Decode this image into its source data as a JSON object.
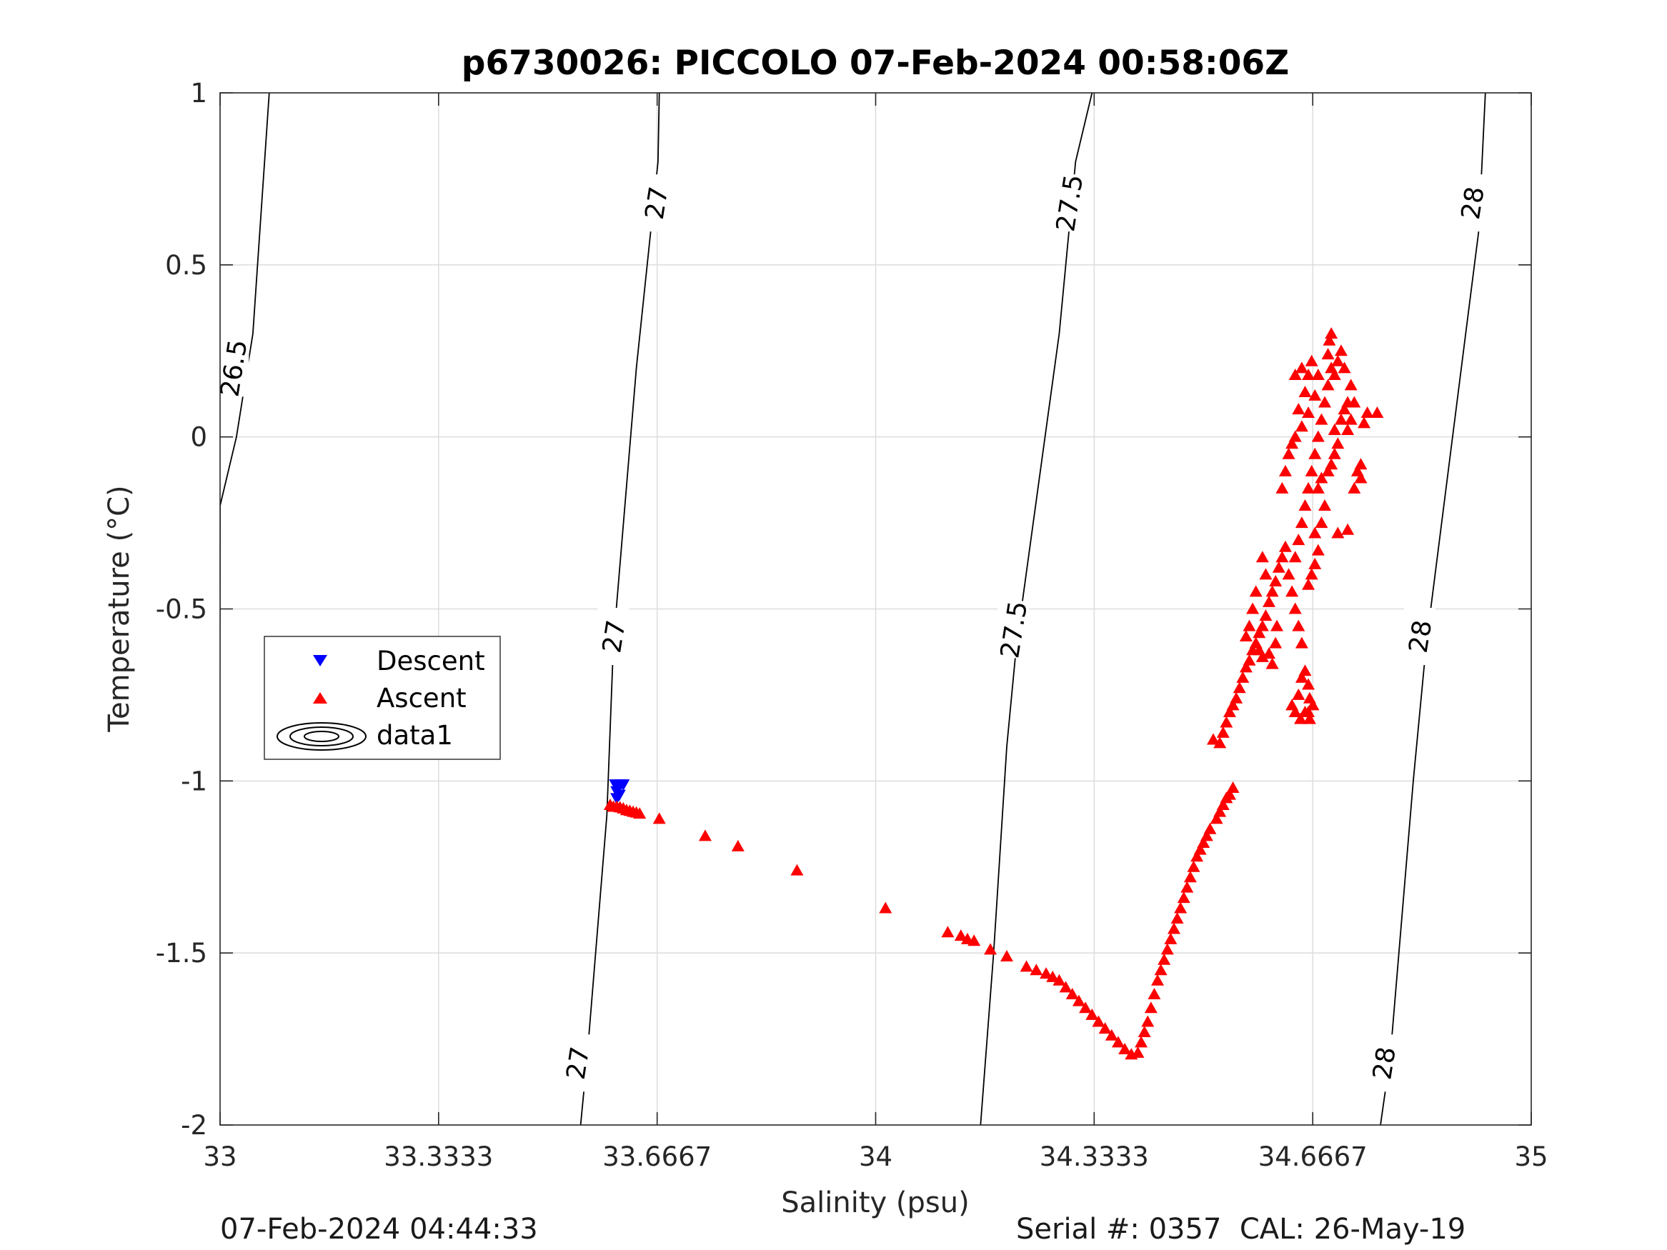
{
  "chart_data": {
    "type": "scatter",
    "title": "p6730026: PICCOLO 07-Feb-2024 00:58:06Z",
    "xlabel": "Salinity (psu)",
    "ylabel": "Temperature (°C)",
    "xlim": [
      33,
      35
    ],
    "ylim": [
      -2,
      1
    ],
    "xticks": [
      33,
      33.3333,
      33.6667,
      34,
      34.3333,
      34.6667,
      35
    ],
    "xtick_labels": [
      "33",
      "33.3333",
      "33.6667",
      "34",
      "34.3333",
      "34.6667",
      "35"
    ],
    "yticks": [
      -2,
      -1.5,
      -1,
      -0.5,
      0,
      0.5,
      1
    ],
    "ytick_labels": [
      "-2",
      "-1.5",
      "-1",
      "-0.5",
      "0",
      "0.5",
      "1"
    ],
    "grid": true,
    "legend_position": "middle-left",
    "legend": [
      "Descent",
      "Ascent",
      "data1"
    ],
    "series": [
      {
        "name": "Descent",
        "marker": "triangle-down",
        "color": "#0000ff",
        "points": [
          [
            33.603,
            -1.01
          ],
          [
            33.607,
            -1.02
          ],
          [
            33.611,
            -1.01
          ],
          [
            33.615,
            -1.01
          ],
          [
            33.605,
            -1.03
          ],
          [
            33.609,
            -1.04
          ],
          [
            33.605,
            -1.05
          ]
        ]
      },
      {
        "name": "Ascent",
        "marker": "triangle-up",
        "color": "#ff0000",
        "points": [
          [
            33.595,
            -1.07
          ],
          [
            33.6,
            -1.075
          ],
          [
            33.605,
            -1.075
          ],
          [
            33.61,
            -1.077
          ],
          [
            33.615,
            -1.08
          ],
          [
            33.62,
            -1.085
          ],
          [
            33.625,
            -1.087
          ],
          [
            33.63,
            -1.09
          ],
          [
            33.635,
            -1.092
          ],
          [
            33.64,
            -1.095
          ],
          [
            33.67,
            -1.11
          ],
          [
            33.74,
            -1.16
          ],
          [
            33.79,
            -1.19
          ],
          [
            33.88,
            -1.26
          ],
          [
            34.015,
            -1.37
          ],
          [
            34.11,
            -1.44
          ],
          [
            34.13,
            -1.45
          ],
          [
            34.14,
            -1.46
          ],
          [
            34.15,
            -1.465
          ],
          [
            34.175,
            -1.49
          ],
          [
            34.2,
            -1.51
          ],
          [
            34.23,
            -1.54
          ],
          [
            34.245,
            -1.55
          ],
          [
            34.26,
            -1.56
          ],
          [
            34.27,
            -1.57
          ],
          [
            34.28,
            -1.58
          ],
          [
            34.29,
            -1.6
          ],
          [
            34.3,
            -1.62
          ],
          [
            34.31,
            -1.64
          ],
          [
            34.32,
            -1.66
          ],
          [
            34.33,
            -1.68
          ],
          [
            34.34,
            -1.7
          ],
          [
            34.35,
            -1.72
          ],
          [
            34.36,
            -1.74
          ],
          [
            34.37,
            -1.76
          ],
          [
            34.38,
            -1.78
          ],
          [
            34.39,
            -1.795
          ],
          [
            34.4,
            -1.79
          ],
          [
            34.405,
            -1.76
          ],
          [
            34.41,
            -1.73
          ],
          [
            34.415,
            -1.7
          ],
          [
            34.42,
            -1.66
          ],
          [
            34.425,
            -1.62
          ],
          [
            34.43,
            -1.58
          ],
          [
            34.435,
            -1.55
          ],
          [
            34.44,
            -1.52
          ],
          [
            34.445,
            -1.49
          ],
          [
            34.45,
            -1.46
          ],
          [
            34.455,
            -1.43
          ],
          [
            34.46,
            -1.4
          ],
          [
            34.465,
            -1.37
          ],
          [
            34.47,
            -1.34
          ],
          [
            34.475,
            -1.31
          ],
          [
            34.48,
            -1.28
          ],
          [
            34.485,
            -1.25
          ],
          [
            34.49,
            -1.22
          ],
          [
            34.495,
            -1.2
          ],
          [
            34.5,
            -1.18
          ],
          [
            34.505,
            -1.16
          ],
          [
            34.51,
            -1.14
          ],
          [
            34.52,
            -1.11
          ],
          [
            34.525,
            -1.09
          ],
          [
            34.53,
            -1.07
          ],
          [
            34.535,
            -1.05
          ],
          [
            34.54,
            -1.04
          ],
          [
            34.545,
            -1.02
          ],
          [
            34.515,
            -0.88
          ],
          [
            34.525,
            -0.89
          ],
          [
            34.53,
            -0.86
          ],
          [
            34.535,
            -0.83
          ],
          [
            34.54,
            -0.8
          ],
          [
            34.545,
            -0.78
          ],
          [
            34.55,
            -0.76
          ],
          [
            34.555,
            -0.73
          ],
          [
            34.56,
            -0.7
          ],
          [
            34.565,
            -0.67
          ],
          [
            34.57,
            -0.65
          ],
          [
            34.575,
            -0.62
          ],
          [
            34.58,
            -0.6
          ],
          [
            34.585,
            -0.57
          ],
          [
            34.59,
            -0.55
          ],
          [
            34.595,
            -0.52
          ],
          [
            34.6,
            -0.48
          ],
          [
            34.605,
            -0.45
          ],
          [
            34.61,
            -0.42
          ],
          [
            34.615,
            -0.38
          ],
          [
            34.62,
            -0.35
          ],
          [
            34.625,
            -0.32
          ],
          [
            34.585,
            -0.62
          ],
          [
            34.59,
            -0.64
          ],
          [
            34.6,
            -0.63
          ],
          [
            34.605,
            -0.66
          ],
          [
            34.61,
            -0.6
          ],
          [
            34.612,
            -0.55
          ],
          [
            34.59,
            -0.35
          ],
          [
            34.595,
            -0.4
          ],
          [
            34.58,
            -0.45
          ],
          [
            34.575,
            -0.5
          ],
          [
            34.57,
            -0.55
          ],
          [
            34.565,
            -0.58
          ],
          [
            34.63,
            -0.4
          ],
          [
            34.635,
            -0.45
          ],
          [
            34.64,
            -0.5
          ],
          [
            34.645,
            -0.55
          ],
          [
            34.65,
            -0.6
          ],
          [
            34.655,
            -0.68
          ],
          [
            34.66,
            -0.72
          ],
          [
            34.662,
            -0.76
          ],
          [
            34.655,
            -0.8
          ],
          [
            34.648,
            -0.82
          ],
          [
            34.64,
            -0.8
          ],
          [
            34.635,
            -0.78
          ],
          [
            34.645,
            -0.75
          ],
          [
            34.65,
            -0.7
          ],
          [
            34.66,
            -0.8
          ],
          [
            34.662,
            -0.82
          ],
          [
            34.667,
            -0.78
          ],
          [
            34.64,
            -0.35
          ],
          [
            34.645,
            -0.3
          ],
          [
            34.65,
            -0.25
          ],
          [
            34.655,
            -0.2
          ],
          [
            34.66,
            -0.15
          ],
          [
            34.665,
            -0.1
          ],
          [
            34.67,
            -0.05
          ],
          [
            34.675,
            0.0
          ],
          [
            34.68,
            0.05
          ],
          [
            34.685,
            0.1
          ],
          [
            34.69,
            0.15
          ],
          [
            34.695,
            0.2
          ],
          [
            34.69,
            0.24
          ],
          [
            34.692,
            0.28
          ],
          [
            34.695,
            0.3
          ],
          [
            34.66,
            -0.43
          ],
          [
            34.665,
            -0.4
          ],
          [
            34.67,
            -0.37
          ],
          [
            34.675,
            -0.33
          ],
          [
            34.67,
            -0.28
          ],
          [
            34.68,
            -0.25
          ],
          [
            34.685,
            -0.2
          ],
          [
            34.675,
            -0.15
          ],
          [
            34.68,
            -0.12
          ],
          [
            34.69,
            -0.1
          ],
          [
            34.695,
            -0.08
          ],
          [
            34.7,
            -0.05
          ],
          [
            34.705,
            -0.02
          ],
          [
            34.7,
            0.02
          ],
          [
            34.71,
            0.05
          ],
          [
            34.715,
            0.08
          ],
          [
            34.72,
            0.1
          ],
          [
            34.725,
            0.15
          ],
          [
            34.7,
            0.18
          ],
          [
            34.705,
            0.22
          ],
          [
            34.71,
            0.25
          ],
          [
            34.715,
            0.2
          ],
          [
            34.62,
            -0.15
          ],
          [
            34.625,
            -0.1
          ],
          [
            34.63,
            -0.05
          ],
          [
            34.635,
            -0.02
          ],
          [
            34.64,
            0.0
          ],
          [
            34.65,
            0.03
          ],
          [
            34.66,
            0.07
          ],
          [
            34.67,
            0.12
          ],
          [
            34.675,
            0.18
          ],
          [
            34.665,
            0.22
          ],
          [
            34.66,
            0.18
          ],
          [
            34.655,
            0.13
          ],
          [
            34.645,
            0.08
          ],
          [
            34.64,
            0.18
          ],
          [
            34.65,
            0.2
          ],
          [
            34.735,
            -0.1
          ],
          [
            34.74,
            -0.08
          ],
          [
            34.745,
            0.04
          ],
          [
            34.75,
            0.07
          ],
          [
            34.73,
            0.1
          ],
          [
            34.725,
            0.05
          ],
          [
            34.72,
            0.02
          ],
          [
            34.705,
            -0.28
          ],
          [
            34.72,
            -0.27
          ],
          [
            34.73,
            -0.15
          ],
          [
            34.74,
            -0.12
          ],
          [
            34.765,
            0.07
          ]
        ]
      }
    ],
    "contours": [
      {
        "label": "26.5",
        "points": [
          [
            32.998,
            -2.5
          ],
          [
            33.0,
            -0.2
          ],
          [
            33.025,
            0.0
          ],
          [
            33.05,
            0.3
          ],
          [
            33.075,
            1.0
          ]
        ],
        "label_at": [
          33.02,
          0.2
        ]
      },
      {
        "label": "27",
        "points": [
          [
            33.55,
            -2.0
          ],
          [
            33.56,
            -1.8
          ],
          [
            33.59,
            -1.1
          ],
          [
            33.6,
            -0.6
          ],
          [
            33.635,
            0.2
          ],
          [
            33.668,
            0.8
          ],
          [
            33.67,
            1.0
          ]
        ],
        "label_at": [
          [
            33.545,
            -1.82
          ],
          [
            33.6,
            -0.58
          ],
          [
            33.665,
            0.68
          ]
        ]
      },
      {
        "label": "27.5",
        "points": [
          [
            34.16,
            -2.0
          ],
          [
            34.18,
            -1.5
          ],
          [
            34.2,
            -0.9
          ],
          [
            34.215,
            -0.6
          ],
          [
            34.28,
            0.3
          ],
          [
            34.305,
            0.8
          ],
          [
            34.33,
            1.0
          ]
        ],
        "label_at": [
          [
            34.21,
            -0.56
          ],
          [
            34.295,
            0.68
          ]
        ]
      },
      {
        "label": "28",
        "points": [
          [
            34.77,
            -2.0
          ],
          [
            34.785,
            -1.8
          ],
          [
            34.82,
            -1.0
          ],
          [
            34.84,
            -0.6
          ],
          [
            34.88,
            0.0
          ],
          [
            34.92,
            0.6
          ],
          [
            34.93,
            1.0
          ]
        ],
        "label_at": [
          [
            34.775,
            -1.82
          ],
          [
            34.83,
            -0.58
          ],
          [
            34.91,
            0.68
          ]
        ]
      }
    ]
  },
  "footer": {
    "left": "07-Feb-2024 04:44:33",
    "right": "Serial #: 0357  CAL: 26-May-19"
  }
}
